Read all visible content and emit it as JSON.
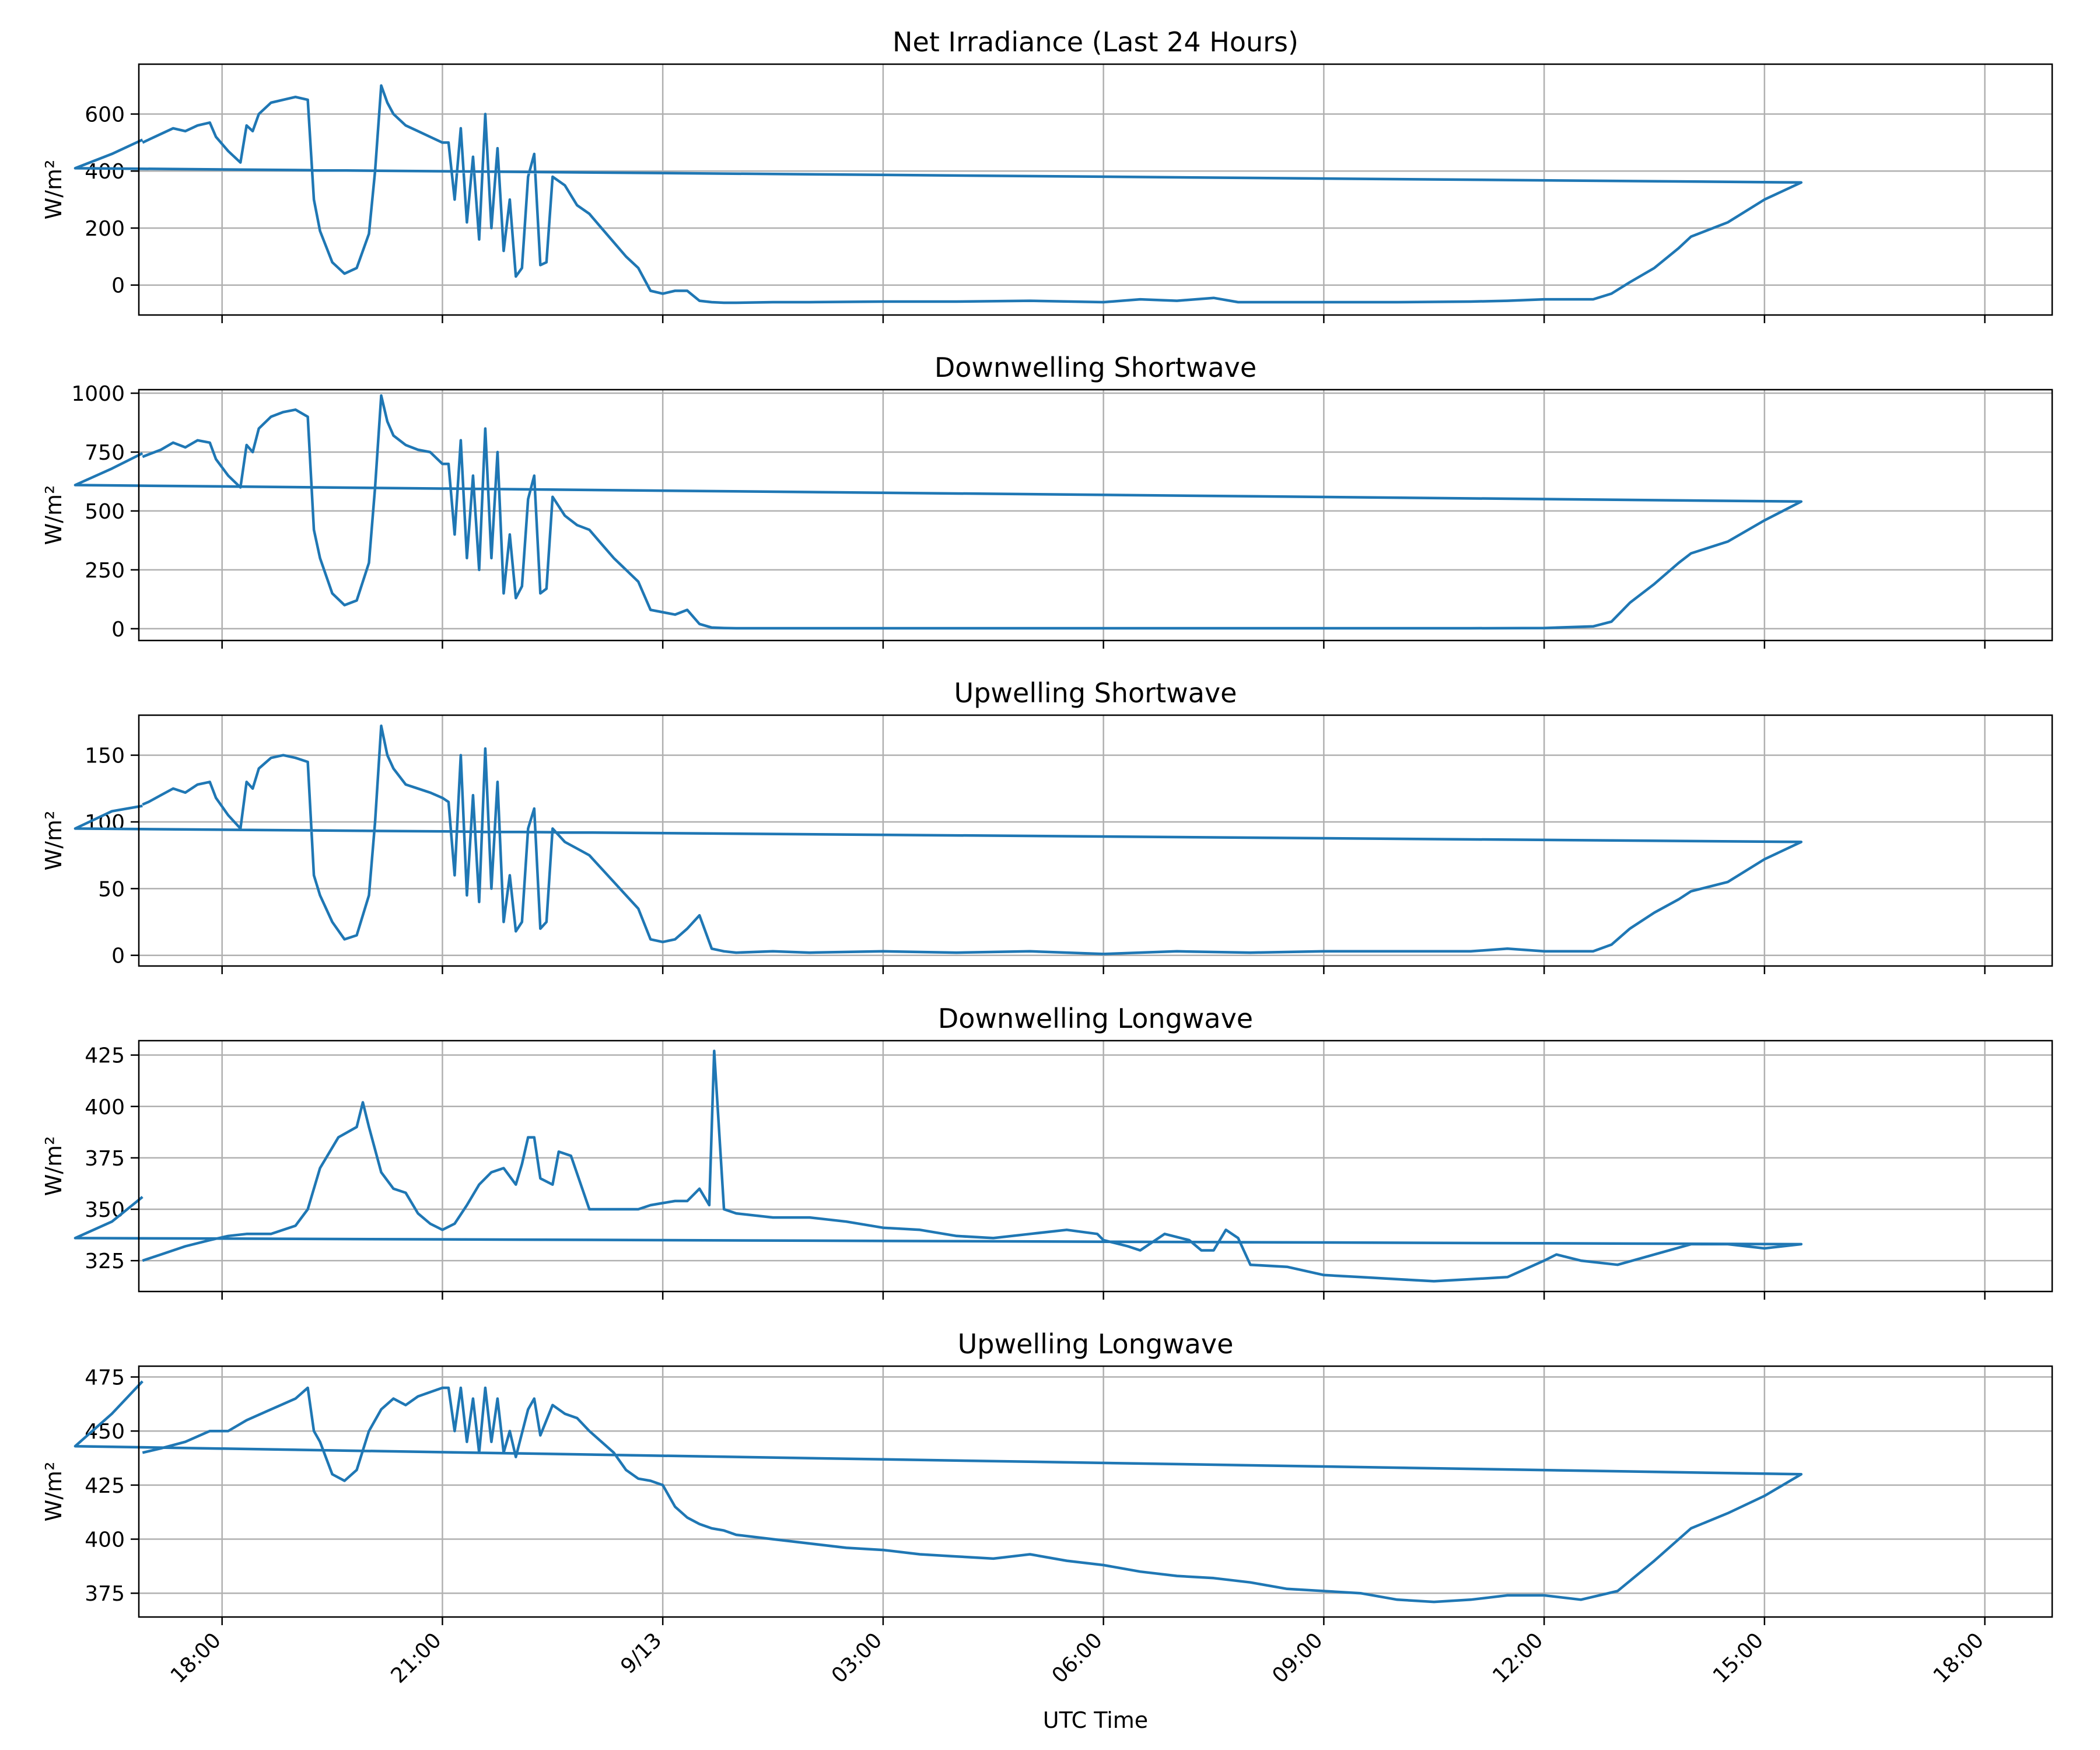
{
  "chart_data": [
    {
      "type": "line",
      "title": "Net Irradiance (Last 24 Hours)",
      "ylabel": "W/m²",
      "ylim": [
        -105,
        775
      ],
      "yticks": [
        0,
        200,
        400,
        600
      ],
      "series": [
        {
          "color": "#1f77b4",
          "x": [
            "16:55",
            "17:00",
            "17:10",
            "17:20",
            "17:30",
            "17:40",
            "17:50",
            "17:55",
            "18:05",
            "18:15",
            "18:20",
            "18:25",
            "18:30",
            "18:40",
            "18:50",
            "19:00",
            "19:10",
            "19:15",
            "19:20",
            "19:30",
            "19:40",
            "19:50",
            "20:00",
            "20:05",
            "20:10",
            "20:15",
            "20:20",
            "20:30",
            "20:40",
            "20:50",
            "21:00",
            "21:05",
            "21:10",
            "21:15",
            "21:20",
            "21:25",
            "21:30",
            "21:35",
            "21:40",
            "21:45",
            "21:50",
            "21:55",
            "22:00",
            "22:05",
            "22:10",
            "22:15",
            "22:20",
            "22:25",
            "22:30",
            "22:40",
            "22:50",
            "23:00",
            "23:10",
            "23:20",
            "23:30",
            "23:40",
            "23:50",
            "00:00",
            "00:10",
            "00:20",
            "00:30",
            "00:40",
            "00:50",
            "01:00",
            "01:30",
            "02:00",
            "03:00",
            "04:00",
            "05:00",
            "06:00",
            "06:30",
            "07:00",
            "07:30",
            "07:50",
            "08:00",
            "09:00",
            "10:00",
            "11:00",
            "11:30",
            "12:00",
            "12:40",
            "12:55",
            "13:10",
            "13:30",
            "13:50",
            "14:00",
            "14:30",
            "15:00",
            "15:30",
            "16:00",
            "16:30",
            "16:55"
          ],
          "y": [
            500,
            510,
            530,
            550,
            540,
            560,
            570,
            520,
            470,
            430,
            560,
            540,
            600,
            640,
            650,
            660,
            650,
            300,
            190,
            80,
            40,
            60,
            180,
            400,
            700,
            640,
            600,
            560,
            540,
            520,
            500,
            500,
            300,
            550,
            220,
            450,
            160,
            600,
            200,
            480,
            120,
            300,
            30,
            60,
            380,
            460,
            70,
            80,
            380,
            350,
            280,
            250,
            200,
            150,
            100,
            60,
            -20,
            -30,
            -20,
            -20,
            -55,
            -60,
            -62,
            -62,
            -60,
            -60,
            -58,
            -58,
            -55,
            -60,
            -50,
            -55,
            -45,
            -60,
            -60,
            -60,
            -60,
            -58,
            -55,
            -50,
            -50,
            -30,
            10,
            60,
            130,
            170,
            220,
            300,
            360,
            410,
            460,
            510
          ]
        }
      ]
    },
    {
      "type": "line",
      "title": "Downwelling Shortwave",
      "ylabel": "W/m²",
      "ylim": [
        -50,
        1015
      ],
      "yticks": [
        0,
        250,
        500,
        750,
        1000
      ],
      "series": [
        {
          "color": "#1f77b4",
          "x": [
            "16:55",
            "17:00",
            "17:10",
            "17:20",
            "17:30",
            "17:40",
            "17:50",
            "17:55",
            "18:05",
            "18:15",
            "18:20",
            "18:25",
            "18:30",
            "18:40",
            "18:50",
            "19:00",
            "19:10",
            "19:15",
            "19:20",
            "19:30",
            "19:40",
            "19:50",
            "20:00",
            "20:05",
            "20:10",
            "20:15",
            "20:20",
            "20:30",
            "20:40",
            "20:50",
            "21:00",
            "21:05",
            "21:10",
            "21:15",
            "21:20",
            "21:25",
            "21:30",
            "21:35",
            "21:40",
            "21:45",
            "21:50",
            "21:55",
            "22:00",
            "22:05",
            "22:10",
            "22:15",
            "22:20",
            "22:25",
            "22:30",
            "22:40",
            "22:50",
            "23:00",
            "23:10",
            "23:20",
            "23:30",
            "23:40",
            "23:50",
            "00:00",
            "00:10",
            "00:20",
            "00:30",
            "00:40",
            "00:50",
            "01:00",
            "01:30",
            "02:00",
            "03:00",
            "04:00",
            "05:00",
            "06:00",
            "07:00",
            "08:00",
            "09:00",
            "10:00",
            "11:00",
            "12:00",
            "12:40",
            "12:55",
            "13:10",
            "13:30",
            "13:50",
            "14:00",
            "14:30",
            "15:00",
            "15:30",
            "16:00",
            "16:30",
            "16:55"
          ],
          "y": [
            730,
            740,
            760,
            790,
            770,
            800,
            790,
            720,
            650,
            600,
            780,
            750,
            850,
            900,
            920,
            930,
            900,
            420,
            300,
            150,
            100,
            120,
            280,
            600,
            990,
            880,
            820,
            780,
            760,
            750,
            700,
            700,
            400,
            800,
            300,
            650,
            250,
            850,
            300,
            750,
            150,
            400,
            130,
            180,
            550,
            650,
            150,
            170,
            560,
            480,
            440,
            420,
            360,
            300,
            250,
            200,
            80,
            70,
            60,
            80,
            20,
            5,
            3,
            2,
            2,
            2,
            2,
            2,
            2,
            2,
            2,
            2,
            2,
            2,
            2,
            3,
            10,
            30,
            110,
            190,
            280,
            320,
            370,
            460,
            540,
            610,
            680,
            745
          ]
        }
      ]
    },
    {
      "type": "line",
      "title": "Upwelling Shortwave",
      "ylabel": "W/m²",
      "ylim": [
        -8,
        180
      ],
      "yticks": [
        0,
        50,
        100,
        150
      ],
      "series": [
        {
          "color": "#1f77b4",
          "x": [
            "16:55",
            "17:00",
            "17:10",
            "17:20",
            "17:30",
            "17:40",
            "17:50",
            "17:55",
            "18:05",
            "18:15",
            "18:20",
            "18:25",
            "18:30",
            "18:40",
            "18:50",
            "19:00",
            "19:10",
            "19:15",
            "19:20",
            "19:30",
            "19:40",
            "19:50",
            "20:00",
            "20:05",
            "20:10",
            "20:15",
            "20:20",
            "20:30",
            "20:40",
            "20:50",
            "21:00",
            "21:05",
            "21:10",
            "21:15",
            "21:20",
            "21:25",
            "21:30",
            "21:35",
            "21:40",
            "21:45",
            "21:50",
            "21:55",
            "22:00",
            "22:05",
            "22:10",
            "22:15",
            "22:20",
            "22:25",
            "22:30",
            "22:40",
            "22:50",
            "23:00",
            "23:10",
            "23:20",
            "23:30",
            "23:40",
            "23:50",
            "00:00",
            "00:10",
            "00:20",
            "00:30",
            "00:40",
            "00:50",
            "01:00",
            "01:30",
            "02:00",
            "03:00",
            "04:00",
            "05:00",
            "06:00",
            "07:00",
            "08:00",
            "09:00",
            "10:00",
            "11:00",
            "11:30",
            "12:00",
            "12:40",
            "12:55",
            "13:10",
            "13:30",
            "13:50",
            "14:00",
            "14:30",
            "15:00",
            "15:30",
            "16:00",
            "16:30",
            "16:55"
          ],
          "y": [
            113,
            115,
            120,
            125,
            122,
            128,
            130,
            118,
            105,
            95,
            130,
            125,
            140,
            148,
            150,
            148,
            145,
            60,
            45,
            25,
            12,
            15,
            45,
            100,
            172,
            150,
            140,
            128,
            125,
            122,
            118,
            115,
            60,
            150,
            45,
            120,
            40,
            155,
            50,
            130,
            25,
            60,
            18,
            25,
            95,
            110,
            20,
            25,
            95,
            85,
            80,
            75,
            65,
            55,
            45,
            35,
            12,
            10,
            12,
            20,
            30,
            5,
            3,
            2,
            3,
            2,
            3,
            2,
            3,
            1,
            3,
            2,
            3,
            3,
            3,
            5,
            3,
            3,
            8,
            20,
            32,
            42,
            48,
            55,
            72,
            85,
            95,
            108,
            112
          ]
        }
      ]
    },
    {
      "type": "line",
      "title": "Downwelling Longwave",
      "ylabel": "W/m²",
      "ylim": [
        310,
        432
      ],
      "yticks": [
        325,
        350,
        375,
        400,
        425
      ],
      "series": [
        {
          "color": "#1f77b4",
          "x": [
            "16:55",
            "17:10",
            "17:30",
            "17:50",
            "18:05",
            "18:20",
            "18:40",
            "19:00",
            "19:10",
            "19:20",
            "19:35",
            "19:50",
            "19:55",
            "20:00",
            "20:10",
            "20:20",
            "20:30",
            "20:40",
            "20:50",
            "21:00",
            "21:10",
            "21:20",
            "21:30",
            "21:40",
            "21:50",
            "22:00",
            "22:05",
            "22:10",
            "22:15",
            "22:20",
            "22:30",
            "22:35",
            "22:45",
            "23:00",
            "23:20",
            "23:40",
            "23:50",
            "00:00",
            "00:10",
            "00:20",
            "00:30",
            "00:35",
            "00:38",
            "00:42",
            "00:50",
            "01:00",
            "01:30",
            "02:00",
            "02:30",
            "03:00",
            "03:30",
            "04:00",
            "04:30",
            "05:00",
            "05:30",
            "05:55",
            "06:00",
            "06:20",
            "06:30",
            "06:50",
            "07:10",
            "07:20",
            "07:30",
            "07:40",
            "07:50",
            "08:00",
            "08:30",
            "09:00",
            "09:30",
            "10:00",
            "10:30",
            "11:00",
            "11:30",
            "12:00",
            "12:10",
            "12:30",
            "13:00",
            "13:30",
            "14:00",
            "14:30",
            "15:00",
            "15:30",
            "16:00",
            "16:30",
            "16:55"
          ],
          "y": [
            325,
            328,
            332,
            335,
            337,
            338,
            338,
            342,
            350,
            370,
            385,
            390,
            402,
            390,
            368,
            360,
            358,
            348,
            343,
            340,
            343,
            352,
            362,
            368,
            370,
            362,
            372,
            385,
            385,
            365,
            362,
            378,
            376,
            350,
            350,
            350,
            352,
            353,
            354,
            354,
            360,
            355,
            352,
            427,
            350,
            348,
            346,
            346,
            344,
            341,
            340,
            337,
            336,
            338,
            340,
            338,
            335,
            332,
            330,
            338,
            335,
            330,
            330,
            340,
            336,
            323,
            322,
            318,
            317,
            316,
            315,
            316,
            317,
            325,
            328,
            325,
            323,
            328,
            333,
            333,
            331,
            333,
            336,
            344,
            356
          ]
        }
      ]
    },
    {
      "type": "line",
      "title": "Upwelling Longwave",
      "ylabel": "W/m²",
      "xlabel": "UTC Time",
      "ylim": [
        364,
        480
      ],
      "yticks": [
        375,
        400,
        425,
        450,
        475
      ],
      "series": [
        {
          "color": "#1f77b4",
          "x": [
            "16:55",
            "17:10",
            "17:30",
            "17:50",
            "18:05",
            "18:20",
            "18:40",
            "19:00",
            "19:10",
            "19:15",
            "19:20",
            "19:30",
            "19:40",
            "19:50",
            "20:00",
            "20:10",
            "20:20",
            "20:30",
            "20:40",
            "20:50",
            "21:00",
            "21:05",
            "21:10",
            "21:15",
            "21:20",
            "21:25",
            "21:30",
            "21:35",
            "21:40",
            "21:45",
            "21:50",
            "21:55",
            "22:00",
            "22:10",
            "22:15",
            "22:20",
            "22:30",
            "22:40",
            "22:50",
            "23:00",
            "23:10",
            "23:20",
            "23:30",
            "23:40",
            "23:50",
            "00:00",
            "00:10",
            "00:20",
            "00:30",
            "00:40",
            "00:50",
            "01:00",
            "01:30",
            "02:00",
            "02:30",
            "03:00",
            "03:30",
            "04:00",
            "04:30",
            "05:00",
            "05:30",
            "06:00",
            "06:30",
            "07:00",
            "07:30",
            "08:00",
            "08:30",
            "09:00",
            "09:30",
            "10:00",
            "10:30",
            "11:00",
            "11:30",
            "12:00",
            "12:30",
            "13:00",
            "13:30",
            "14:00",
            "14:30",
            "15:00",
            "15:30",
            "16:00",
            "16:30",
            "16:55"
          ],
          "y": [
            440,
            442,
            445,
            450,
            450,
            455,
            460,
            465,
            470,
            450,
            445,
            430,
            427,
            432,
            450,
            460,
            465,
            462,
            466,
            468,
            470,
            470,
            450,
            470,
            445,
            465,
            440,
            470,
            445,
            465,
            440,
            450,
            438,
            460,
            465,
            448,
            462,
            458,
            456,
            450,
            445,
            440,
            432,
            428,
            427,
            425,
            415,
            410,
            407,
            405,
            404,
            402,
            400,
            398,
            396,
            395,
            393,
            392,
            391,
            393,
            390,
            388,
            385,
            383,
            382,
            380,
            377,
            376,
            375,
            372,
            371,
            372,
            374,
            374,
            372,
            376,
            390,
            405,
            412,
            420,
            430,
            443,
            458,
            473
          ]
        }
      ]
    }
  ],
  "x_axis": {
    "tick_labels": [
      "18:00",
      "21:00",
      "9/13",
      "03:00",
      "06:00",
      "09:00",
      "12:00",
      "15:00",
      "18:00"
    ],
    "xlabel": "UTC Time"
  }
}
